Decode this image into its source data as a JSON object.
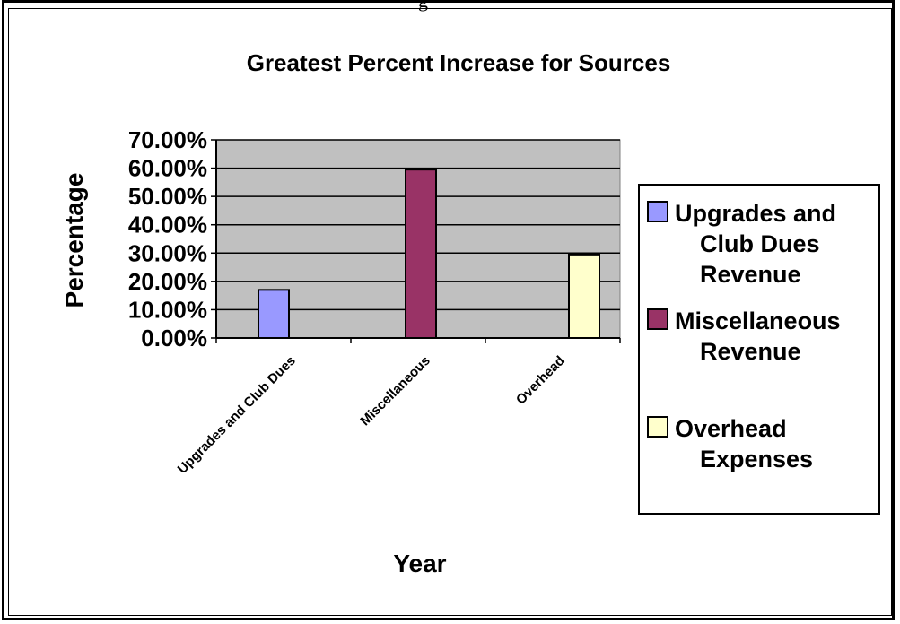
{
  "chart_data": {
    "type": "bar",
    "title": "Greatest Percent Increase for Sources",
    "xlabel": "Year",
    "ylabel": "Percentage",
    "categories": [
      "Upgrades and Club Dues",
      "Miscellaneous",
      "Overhead"
    ],
    "series": [
      {
        "name": "Upgrades and Club Dues Revenue",
        "values": [
          0.17,
          null,
          null
        ],
        "color": "#9999ff"
      },
      {
        "name": "Miscellaneous Revenue",
        "values": [
          null,
          0.595,
          null
        ],
        "color": "#993366"
      },
      {
        "name": "Overhead Expenses",
        "values": [
          null,
          null,
          0.295
        ],
        "color": "#ffffcc"
      }
    ],
    "ylim": [
      0,
      0.7
    ],
    "yticks": [
      "0.00%",
      "10.00%",
      "20.00%",
      "30.00%",
      "40.00%",
      "50.00%",
      "60.00%",
      "70.00%"
    ],
    "grid": true,
    "plot_background": "#c0c0c0",
    "legend_position": "right"
  }
}
